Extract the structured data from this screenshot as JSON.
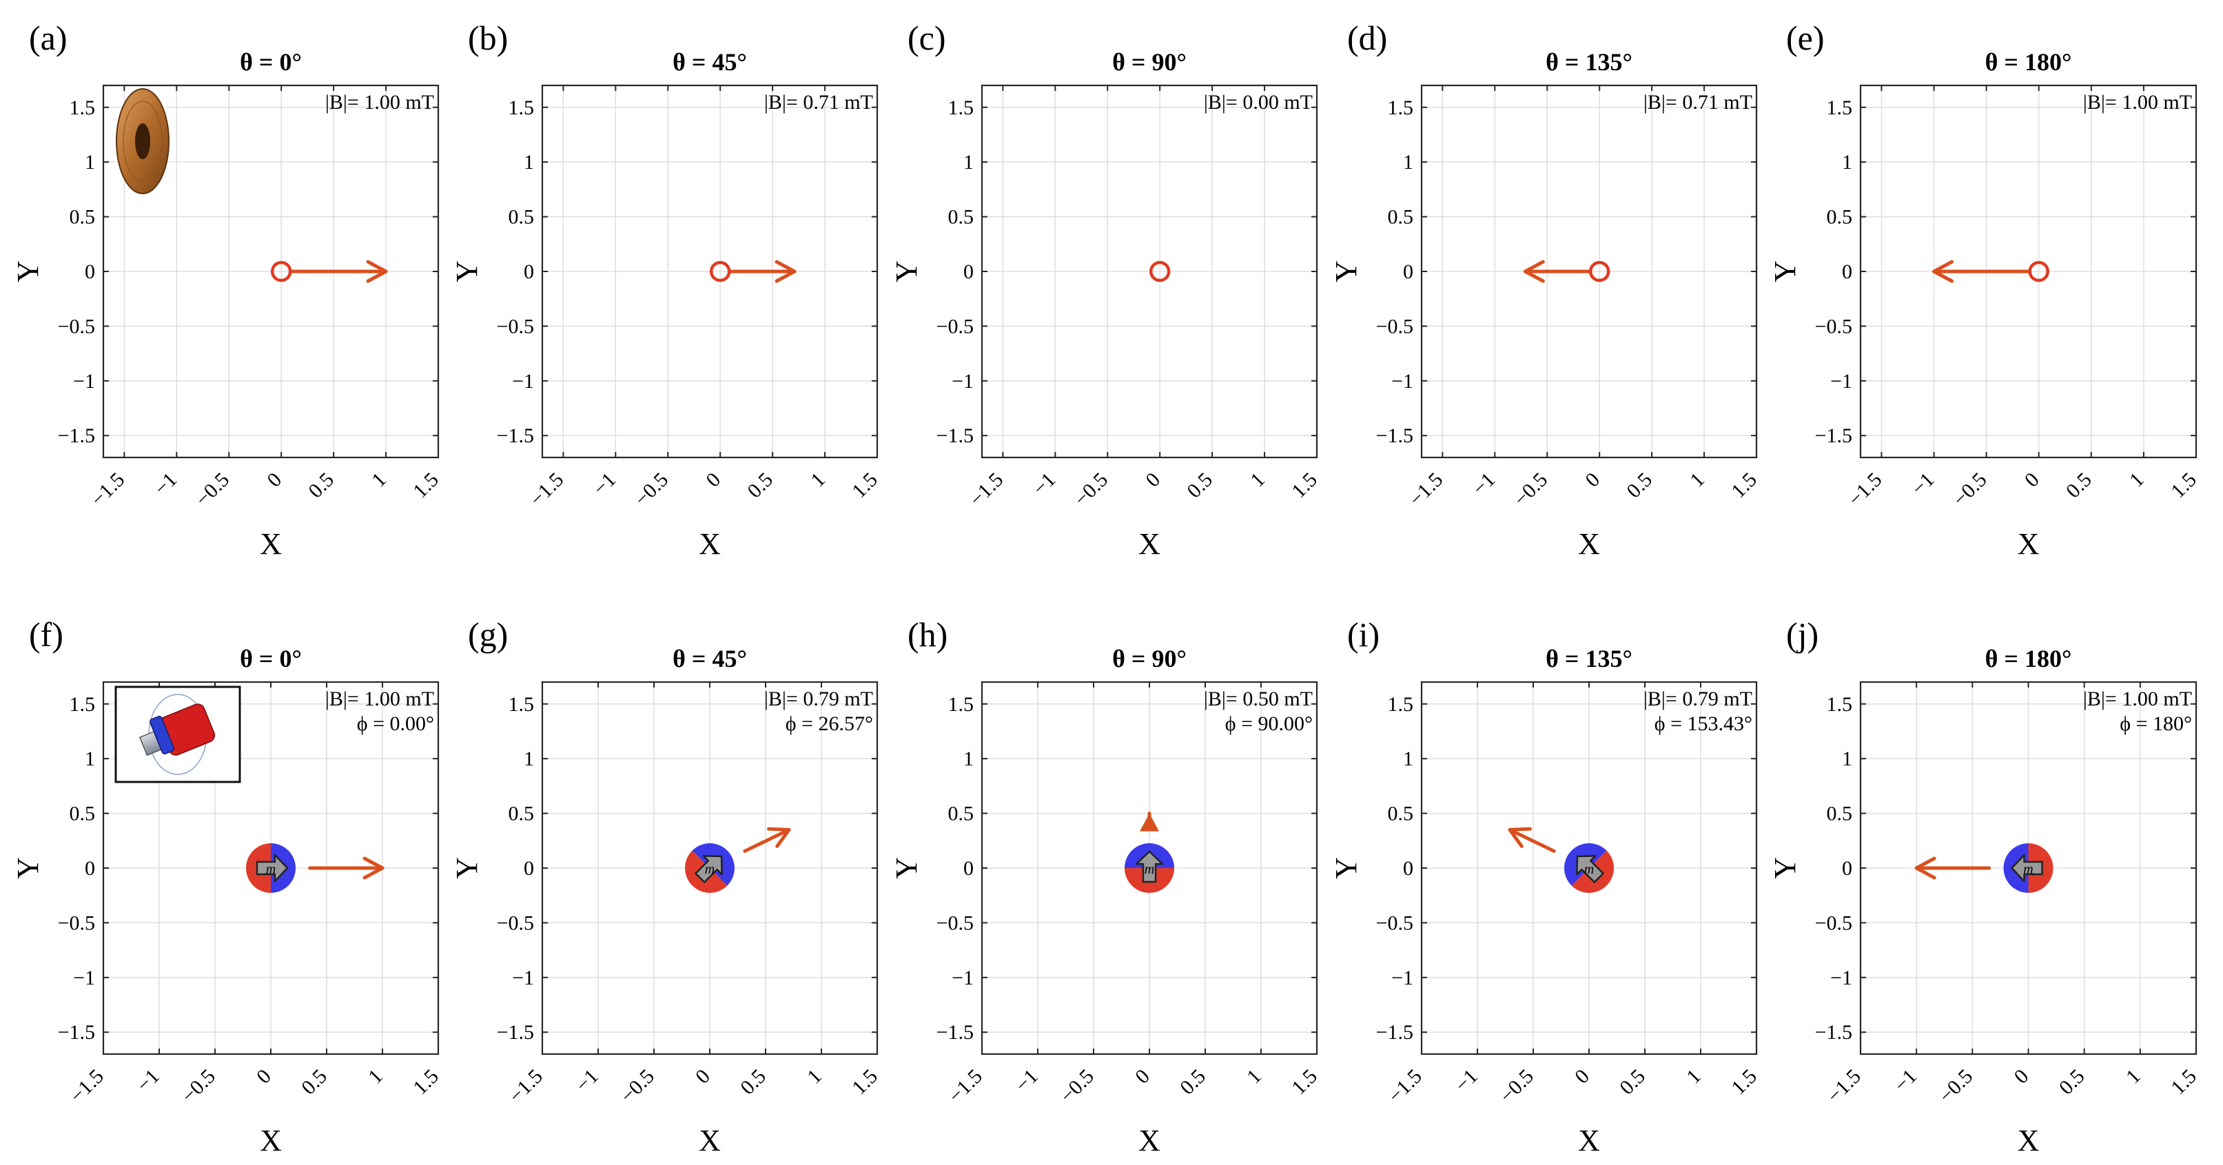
{
  "figure": {
    "x_axis_label": "X",
    "y_axis_label": "Y",
    "colors": {
      "field_arrow": "#d9501e",
      "coil_marker": "#e03a20",
      "magnet_north": "#3a3ae8",
      "magnet_south": "#e03a2a",
      "moment_arrow": "#9a9a9a",
      "grid": "#dedede",
      "axes": "#262626"
    },
    "row1_inset_icon": "copper-coil-icon",
    "row2_inset_icon": "magnet-actuator-icon",
    "magnet_moment_label": "m"
  },
  "chart_data": [
    {
      "type": "scatter",
      "panel_label": "(a)",
      "title": "θ = 0°",
      "xlim": [
        -1.7,
        1.5
      ],
      "ylim": [
        -1.7,
        1.7
      ],
      "grid": true,
      "xticks": [
        -1.5,
        -1,
        -0.5,
        0,
        0.5,
        1,
        1.5
      ],
      "xtick_labels": [
        "−1.5",
        "−1",
        "−0.5",
        "0",
        "0.5",
        "1",
        "1.5"
      ],
      "yticks": [
        1.5,
        1,
        0.5,
        0,
        -0.5,
        -1,
        -1.5
      ],
      "ytick_labels": [
        "1.5",
        "1",
        "0.5",
        "0",
        "−0.5",
        "−1",
        "−1.5"
      ],
      "marker": "coil",
      "field_vector": [
        1.0,
        0.0
      ],
      "annotations": [
        "|B|= 1.00 mT"
      ]
    },
    {
      "type": "scatter",
      "panel_label": "(b)",
      "title": "θ = 45°",
      "xlim": [
        -1.7,
        1.5
      ],
      "ylim": [
        -1.7,
        1.7
      ],
      "grid": true,
      "xticks": [
        -1.5,
        -1,
        -0.5,
        0,
        0.5,
        1,
        1.5
      ],
      "xtick_labels": [
        "−1.5",
        "−1",
        "−0.5",
        "0",
        "0.5",
        "1",
        "1.5"
      ],
      "yticks": [
        1.5,
        1,
        0.5,
        0,
        -0.5,
        -1,
        -1.5
      ],
      "ytick_labels": [
        "1.5",
        "1",
        "0.5",
        "0",
        "−0.5",
        "−1",
        "−1.5"
      ],
      "marker": "coil",
      "field_vector": [
        0.71,
        0.0
      ],
      "annotations": [
        "|B|= 0.71 mT"
      ]
    },
    {
      "type": "scatter",
      "panel_label": "(c)",
      "title": "θ = 90°",
      "xlim": [
        -1.7,
        1.5
      ],
      "ylim": [
        -1.7,
        1.7
      ],
      "grid": true,
      "xticks": [
        -1.5,
        -1,
        -0.5,
        0,
        0.5,
        1,
        1.5
      ],
      "xtick_labels": [
        "−1.5",
        "−1",
        "−0.5",
        "0",
        "0.5",
        "1",
        "1.5"
      ],
      "yticks": [
        1.5,
        1,
        0.5,
        0,
        -0.5,
        -1,
        -1.5
      ],
      "ytick_labels": [
        "1.5",
        "1",
        "0.5",
        "0",
        "−0.5",
        "−1",
        "−1.5"
      ],
      "marker": "coil",
      "field_vector": [
        0.0,
        0.0
      ],
      "annotations": [
        "|B|= 0.00 mT"
      ]
    },
    {
      "type": "scatter",
      "panel_label": "(d)",
      "title": "θ = 135°",
      "xlim": [
        -1.7,
        1.5
      ],
      "ylim": [
        -1.7,
        1.7
      ],
      "grid": true,
      "xticks": [
        -1.5,
        -1,
        -0.5,
        0,
        0.5,
        1,
        1.5
      ],
      "xtick_labels": [
        "−1.5",
        "−1",
        "−0.5",
        "0",
        "0.5",
        "1",
        "1.5"
      ],
      "yticks": [
        1.5,
        1,
        0.5,
        0,
        -0.5,
        -1,
        -1.5
      ],
      "ytick_labels": [
        "1.5",
        "1",
        "0.5",
        "0",
        "−0.5",
        "−1",
        "−1.5"
      ],
      "marker": "coil",
      "field_vector": [
        -0.71,
        0.0
      ],
      "annotations": [
        "|B|= 0.71 mT"
      ]
    },
    {
      "type": "scatter",
      "panel_label": "(e)",
      "title": "θ = 180°",
      "xlim": [
        -1.7,
        1.5
      ],
      "ylim": [
        -1.7,
        1.7
      ],
      "grid": true,
      "xticks": [
        -1.5,
        -1,
        -0.5,
        0,
        0.5,
        1,
        1.5
      ],
      "xtick_labels": [
        "−1.5",
        "−1",
        "−0.5",
        "0",
        "0.5",
        "1",
        "1.5"
      ],
      "yticks": [
        1.5,
        1,
        0.5,
        0,
        -0.5,
        -1,
        -1.5
      ],
      "ytick_labels": [
        "1.5",
        "1",
        "0.5",
        "0",
        "−0.5",
        "−1",
        "−1.5"
      ],
      "marker": "coil",
      "field_vector": [
        -1.0,
        0.0
      ],
      "annotations": [
        "|B|= 1.00 mT"
      ]
    },
    {
      "type": "scatter",
      "panel_label": "(f)",
      "title": "θ = 0°",
      "xlim": [
        -1.5,
        1.5
      ],
      "ylim": [
        -1.7,
        1.7
      ],
      "grid": true,
      "xticks": [
        -1.5,
        -1,
        -0.5,
        0,
        0.5,
        1,
        1.5
      ],
      "xtick_labels": [
        "−1.5",
        "−1",
        "−0.5",
        "0",
        "0.5",
        "1",
        "1.5"
      ],
      "yticks": [
        1.5,
        1,
        0.5,
        0,
        -0.5,
        -1,
        -1.5
      ],
      "ytick_labels": [
        "1.5",
        "1",
        "0.5",
        "0",
        "−0.5",
        "−1",
        "−1.5"
      ],
      "marker": "magnet",
      "moment_angle_deg": 0,
      "field_vector": [
        1.0,
        0.0
      ],
      "annotations": [
        "|B|= 1.00 mT",
        "ϕ = 0.00°"
      ]
    },
    {
      "type": "scatter",
      "panel_label": "(g)",
      "title": "θ = 45°",
      "xlim": [
        -1.5,
        1.5
      ],
      "ylim": [
        -1.7,
        1.7
      ],
      "grid": true,
      "xticks": [
        -1.5,
        -1,
        -0.5,
        0,
        0.5,
        1,
        1.5
      ],
      "xtick_labels": [
        "−1.5",
        "−1",
        "−0.5",
        "0",
        "0.5",
        "1",
        "1.5"
      ],
      "yticks": [
        1.5,
        1,
        0.5,
        0,
        -0.5,
        -1,
        -1.5
      ],
      "ytick_labels": [
        "1.5",
        "1",
        "0.5",
        "0",
        "−0.5",
        "−1",
        "−1.5"
      ],
      "marker": "magnet",
      "moment_angle_deg": -45,
      "field_vector": [
        0.71,
        0.35
      ],
      "annotations": [
        "|B|= 0.79 mT",
        "ϕ = 26.57°"
      ]
    },
    {
      "type": "scatter",
      "panel_label": "(h)",
      "title": "θ = 90°",
      "xlim": [
        -1.5,
        1.5
      ],
      "ylim": [
        -1.7,
        1.7
      ],
      "grid": true,
      "xticks": [
        -1.5,
        -1,
        -0.5,
        0,
        0.5,
        1,
        1.5
      ],
      "xtick_labels": [
        "−1.5",
        "−1",
        "−0.5",
        "0",
        "0.5",
        "1",
        "1.5"
      ],
      "yticks": [
        1.5,
        1,
        0.5,
        0,
        -0.5,
        -1,
        -1.5
      ],
      "ytick_labels": [
        "1.5",
        "1",
        "0.5",
        "0",
        "−0.5",
        "−1",
        "−1.5"
      ],
      "marker": "magnet",
      "moment_angle_deg": -90,
      "field_vector": [
        0.0,
        0.5
      ],
      "annotations": [
        "|B|= 0.50 mT",
        "ϕ = 90.00°"
      ]
    },
    {
      "type": "scatter",
      "panel_label": "(i)",
      "title": "θ = 135°",
      "xlim": [
        -1.5,
        1.5
      ],
      "ylim": [
        -1.7,
        1.7
      ],
      "grid": true,
      "xticks": [
        -1.5,
        -1,
        -0.5,
        0,
        0.5,
        1,
        1.5
      ],
      "xtick_labels": [
        "−1.5",
        "−1",
        "−0.5",
        "0",
        "0.5",
        "1",
        "1.5"
      ],
      "yticks": [
        1.5,
        1,
        0.5,
        0,
        -0.5,
        -1,
        -1.5
      ],
      "ytick_labels": [
        "1.5",
        "1",
        "0.5",
        "0",
        "−0.5",
        "−1",
        "−1.5"
      ],
      "marker": "magnet",
      "moment_angle_deg": -135,
      "field_vector": [
        -0.71,
        0.35
      ],
      "annotations": [
        "|B|= 0.79 mT",
        "ϕ = 153.43°"
      ]
    },
    {
      "type": "scatter",
      "panel_label": "(j)",
      "title": "θ = 180°",
      "xlim": [
        -1.5,
        1.5
      ],
      "ylim": [
        -1.7,
        1.7
      ],
      "grid": true,
      "xticks": [
        -1.5,
        -1,
        -0.5,
        0,
        0.5,
        1,
        1.5
      ],
      "xtick_labels": [
        "−1.5",
        "−1",
        "−0.5",
        "0",
        "0.5",
        "1",
        "1.5"
      ],
      "yticks": [
        1.5,
        1,
        0.5,
        0,
        -0.5,
        -1,
        -1.5
      ],
      "ytick_labels": [
        "1.5",
        "1",
        "0.5",
        "0",
        "−0.5",
        "−1",
        "−1.5"
      ],
      "marker": "magnet",
      "moment_angle_deg": 180,
      "field_vector": [
        -1.0,
        0.0
      ],
      "annotations": [
        "|B|= 1.00 mT",
        "ϕ = 180°"
      ]
    }
  ]
}
